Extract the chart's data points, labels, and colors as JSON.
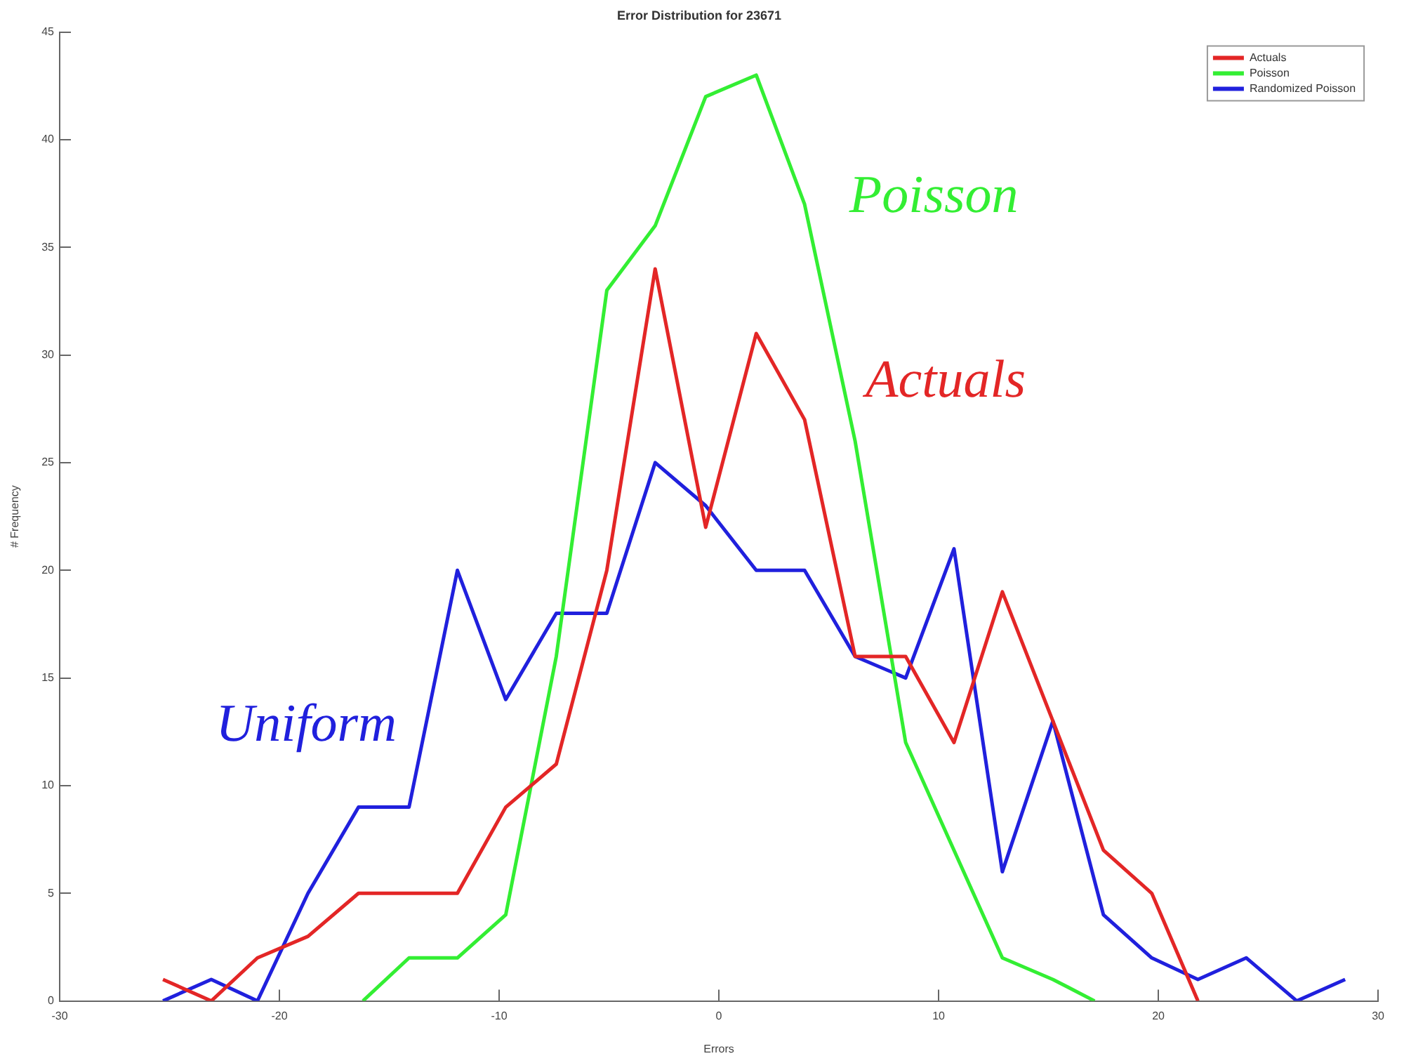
{
  "chart_data": {
    "type": "line",
    "title": "Error Distribution for 23671",
    "xlabel": "Errors",
    "ylabel": "# Frequency",
    "x": [
      -25.3,
      -23.1,
      -21.0,
      -18.7,
      -16.4,
      -14.1,
      -11.9,
      -9.7,
      -7.4,
      -5.1,
      -2.9,
      -0.6,
      1.7,
      3.9,
      6.2,
      8.5,
      10.7,
      12.9,
      15.2,
      17.5,
      19.7,
      21.8,
      24.0,
      26.3,
      28.5
    ],
    "series": [
      {
        "name": "Actuals",
        "color": "#e32626",
        "values": [
          1,
          0,
          2,
          3,
          5,
          5,
          5,
          9,
          11,
          20,
          34,
          22,
          31,
          27,
          16,
          16,
          12,
          19,
          13,
          7,
          5,
          0,
          null,
          null,
          null
        ]
      },
      {
        "name": "Poisson",
        "color": "#33ee33",
        "x": [
          -16.2,
          -14.1,
          -11.9,
          -9.7,
          -7.4,
          -5.1,
          -2.9,
          -0.6,
          1.7,
          3.9,
          6.2,
          8.5,
          10.7,
          12.9,
          15.2,
          17.1
        ],
        "values": [
          0,
          2,
          2,
          4,
          16,
          33,
          36,
          42,
          43,
          37,
          26,
          12,
          7,
          2,
          1,
          0
        ]
      },
      {
        "name": "Randomized Poisson",
        "color": "#2020dd",
        "values": [
          0,
          1,
          0,
          5,
          9,
          9,
          20,
          14,
          18,
          18,
          25,
          23,
          20,
          20,
          16,
          15,
          21,
          6,
          13,
          4,
          2,
          1,
          2,
          0,
          1
        ]
      }
    ],
    "annotations": [
      "Poisson",
      "Actuals",
      "Uniform"
    ],
    "xlim": [
      -30,
      30
    ],
    "xticks": [
      -30,
      -20,
      -10,
      0,
      10,
      20,
      30
    ],
    "ylim": [
      0,
      45
    ],
    "yticks": [
      0,
      5,
      10,
      15,
      20,
      25,
      30,
      35,
      40,
      45
    ],
    "grid": false,
    "legend": "top right",
    "marker": "none",
    "line_style": "solid"
  }
}
